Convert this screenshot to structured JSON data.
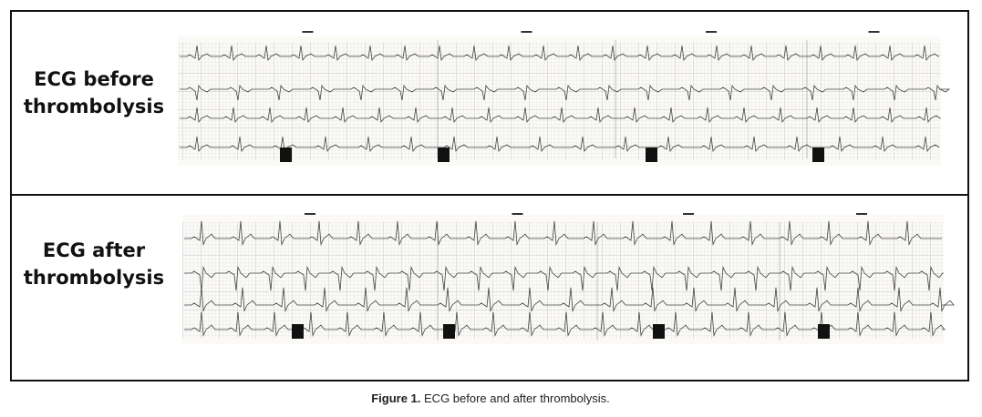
{
  "panels": [
    {
      "label_lines": [
        "ECG before",
        "thrombolysis"
      ]
    },
    {
      "label_lines": [
        "ECG after",
        "thrombolysis"
      ]
    }
  ],
  "caption": {
    "label": "Figure 1.",
    "text": "ECG before and after thrombolysis."
  }
}
